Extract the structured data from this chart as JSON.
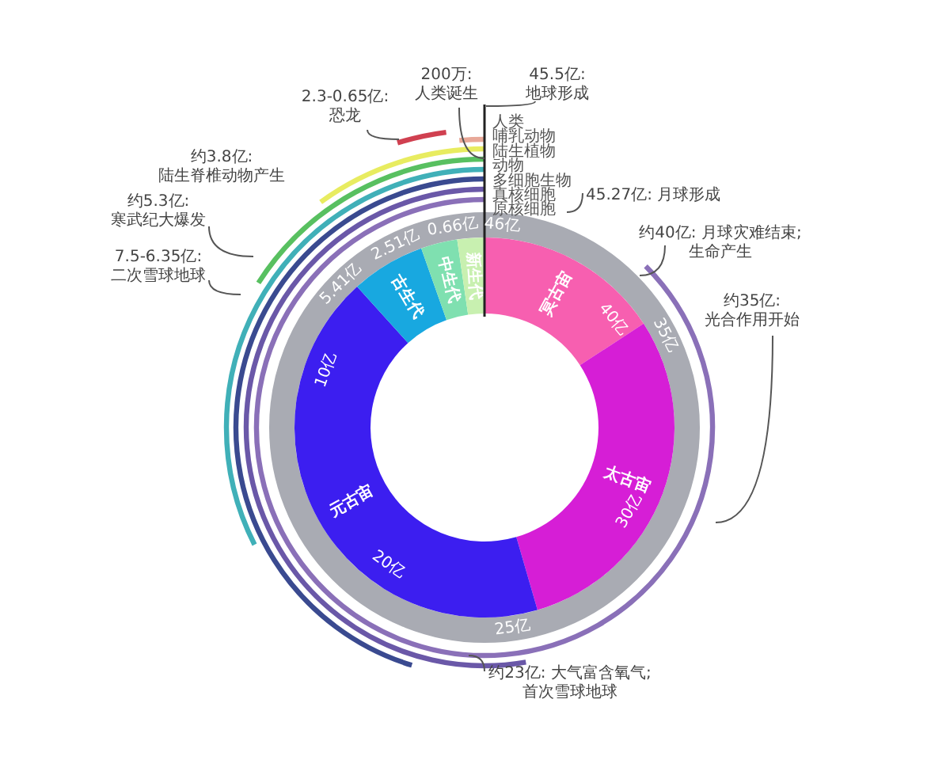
{
  "chart_data": {
    "type": "donut",
    "categories": [
      "冥古宙",
      "太古宙",
      "元古宙",
      "古生代",
      "中生代",
      "新生代"
    ],
    "values": [
      15.8,
      29.7,
      42.8,
      6.3,
      3.1,
      2.3
    ],
    "colors": [
      "#f75fb0",
      "#d61ed6",
      "#3c1ef0",
      "#18a8e0",
      "#7fe0b0",
      "#c8f0b0"
    ],
    "annotations": [
      "200万:\n人类诞生",
      "45.5亿:\n地球形成",
      "2.3-0.65亿:\n恐龙",
      "约3.8亿:\n陆生脊椎动物产生",
      "约5.3亿:\n寒武纪大爆发",
      "7.5-6.35亿:\n二次雪球地球",
      "45.27亿: 月球形成",
      "约40亿: 月球灾难结束;\n生命产生",
      "约35亿:\n光合作用开始",
      "约23亿: 大气富含氧气;\n首次雪球地球",
      "46亿",
      "40亿",
      "35亿",
      "30亿",
      "25亿",
      "20亿",
      "10亿",
      "5.41亿",
      "2.51亿",
      "0.66亿",
      "人类",
      "哺乳动物",
      "陆生植物",
      "动物",
      "多细胞生物",
      "真核细胞",
      "原核细胞"
    ]
  }
}
